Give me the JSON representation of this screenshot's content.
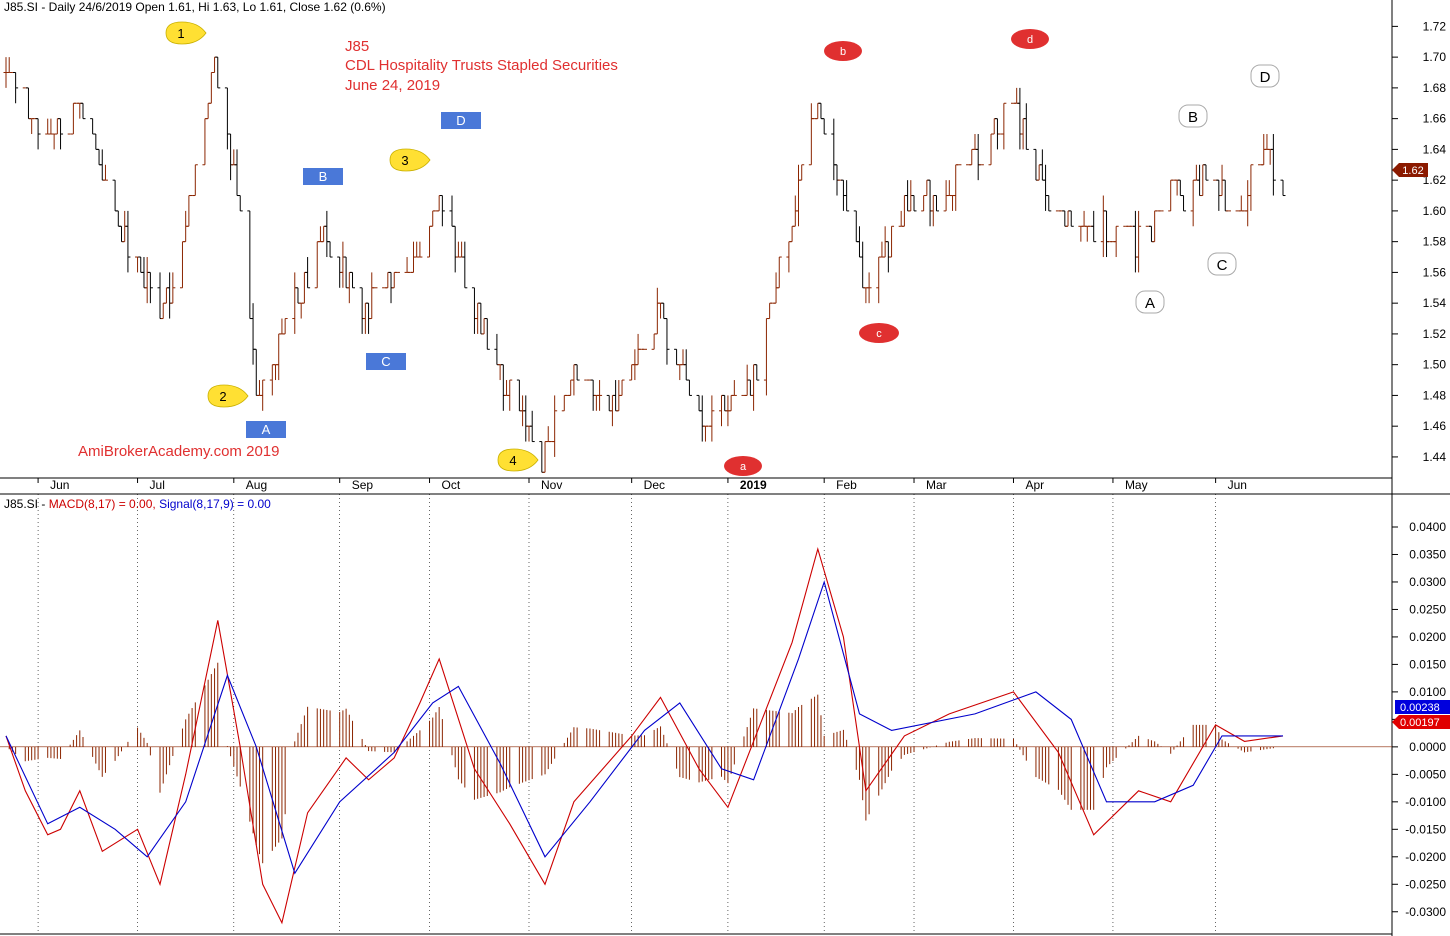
{
  "price_pane": {
    "header": "J85.SI - Daily 24/6/2019 Open 1.61, Hi 1.63, Lo 1.61, Close 1.62 (0.6%)",
    "title_lines": [
      "J85",
      "CDL Hospitality Trusts Stapled Securities",
      "June 24, 2019"
    ],
    "watermark": "AmiBrokerAcademy.com  2019",
    "last_price_tag": "1.62",
    "colors": {
      "up": "#8b2500",
      "down": "#000000",
      "title": "#e03030",
      "tag_bg": "#8b1a00"
    }
  },
  "macd_pane": {
    "header_prefix": "J85.SI - ",
    "macd_label": "MACD(8,17) = 0.00, ",
    "signal_label": "Signal(8,17,9) = 0.00",
    "macd_tag": "0.00197",
    "signal_tag": "0.00238",
    "colors": {
      "macd": "#cc0000",
      "signal": "#0000cc",
      "hist": "#8b2500"
    }
  },
  "annotations": {
    "yellow": [
      "1",
      "2",
      "3",
      "4"
    ],
    "blue": [
      "A",
      "B",
      "C",
      "D"
    ],
    "red": [
      "a",
      "b",
      "c",
      "d"
    ],
    "white": [
      "A",
      "B",
      "C",
      "D"
    ]
  },
  "chart_data": [
    {
      "type": "candlestick",
      "title": "J85 CDL Hospitality Trusts Stapled Securities June 24, 2019",
      "x_tick_labels": [
        "Jun",
        "Jul",
        "Aug",
        "Sep",
        "Oct",
        "Nov",
        "Dec",
        "2019",
        "Feb",
        "Mar",
        "Apr",
        "May",
        "Jun"
      ],
      "y_tick_labels": [
        "1.44",
        "1.46",
        "1.48",
        "1.50",
        "1.52",
        "1.54",
        "1.56",
        "1.58",
        "1.60",
        "1.62",
        "1.64",
        "1.66",
        "1.68",
        "1.70",
        "1.72"
      ],
      "ylim": [
        1.425,
        1.73
      ],
      "series": [
        {
          "name": "J85.SI",
          "close_path": [
            {
              "date": "2018-05-22",
              "value": 1.69
            },
            {
              "date": "2018-06-05",
              "value": 1.65
            },
            {
              "date": "2018-06-14",
              "value": 1.67
            },
            {
              "date": "2018-06-25",
              "value": 1.6
            },
            {
              "date": "2018-07-09",
              "value": 1.53
            },
            {
              "date": "2018-07-17",
              "value": 1.59
            },
            {
              "date": "2018-07-26",
              "value": 1.7
            },
            {
              "date": "2018-08-03",
              "value": 1.6
            },
            {
              "date": "2018-08-08",
              "value": 1.48
            },
            {
              "date": "2018-08-20",
              "value": 1.54
            },
            {
              "date": "2018-08-29",
              "value": 1.58
            },
            {
              "date": "2018-09-10",
              "value": 1.54
            },
            {
              "date": "2018-09-26",
              "value": 1.57
            },
            {
              "date": "2018-10-05",
              "value": 1.61
            },
            {
              "date": "2018-10-15",
              "value": 1.53
            },
            {
              "date": "2018-10-25",
              "value": 1.49
            },
            {
              "date": "2018-11-06",
              "value": 1.44
            },
            {
              "date": "2018-11-15",
              "value": 1.49
            },
            {
              "date": "2018-11-28",
              "value": 1.48
            },
            {
              "date": "2018-12-12",
              "value": 1.53
            },
            {
              "date": "2018-12-26",
              "value": 1.46
            },
            {
              "date": "2019-01-10",
              "value": 1.49
            },
            {
              "date": "2019-01-22",
              "value": 1.59
            },
            {
              "date": "2019-01-30",
              "value": 1.67
            },
            {
              "date": "2019-02-08",
              "value": 1.6
            },
            {
              "date": "2019-02-14",
              "value": 1.55
            },
            {
              "date": "2019-02-26",
              "value": 1.6
            },
            {
              "date": "2019-03-15",
              "value": 1.62
            },
            {
              "date": "2019-04-01",
              "value": 1.67
            },
            {
              "date": "2019-04-12",
              "value": 1.6
            },
            {
              "date": "2019-04-26",
              "value": 1.59
            },
            {
              "date": "2019-05-10",
              "value": 1.58
            },
            {
              "date": "2019-05-20",
              "value": 1.61
            },
            {
              "date": "2019-06-03",
              "value": 1.62
            },
            {
              "date": "2019-06-10",
              "value": 1.6
            },
            {
              "date": "2019-06-17",
              "value": 1.64
            },
            {
              "date": "2019-06-24",
              "value": 1.62
            }
          ]
        }
      ]
    },
    {
      "type": "line",
      "x_tick_labels": [],
      "y_tick_labels": [
        "0.0400",
        "0.0350",
        "0.0300",
        "0.0250",
        "0.0200",
        "0.0150",
        "0.0100",
        "0.0050",
        "0.0000",
        "-0.0050",
        "-0.0100",
        "-0.0150",
        "-0.0200",
        "-0.0250",
        "-0.0300"
      ],
      "ylim": [
        -0.0335,
        0.042
      ],
      "series": [
        {
          "name": "MACD(8,17)",
          "values": [
            {
              "date": "2018-05-22",
              "value": 0.002
            },
            {
              "date": "2018-05-28",
              "value": -0.008
            },
            {
              "date": "2018-06-04",
              "value": -0.016
            },
            {
              "date": "2018-06-08",
              "value": -0.015
            },
            {
              "date": "2018-06-14",
              "value": -0.008
            },
            {
              "date": "2018-06-21",
              "value": -0.019
            },
            {
              "date": "2018-07-02",
              "value": -0.015
            },
            {
              "date": "2018-07-09",
              "value": -0.025
            },
            {
              "date": "2018-07-17",
              "value": -0.005
            },
            {
              "date": "2018-07-27",
              "value": 0.023
            },
            {
              "date": "2018-08-03",
              "value": 0.0
            },
            {
              "date": "2018-08-10",
              "value": -0.025
            },
            {
              "date": "2018-08-16",
              "value": -0.032
            },
            {
              "date": "2018-08-24",
              "value": -0.012
            },
            {
              "date": "2018-09-05",
              "value": -0.002
            },
            {
              "date": "2018-09-12",
              "value": -0.006
            },
            {
              "date": "2018-09-20",
              "value": -0.002
            },
            {
              "date": "2018-09-28",
              "value": 0.008
            },
            {
              "date": "2018-10-04",
              "value": 0.016
            },
            {
              "date": "2018-10-15",
              "value": -0.004
            },
            {
              "date": "2018-10-26",
              "value": -0.014
            },
            {
              "date": "2018-11-06",
              "value": -0.025
            },
            {
              "date": "2018-11-15",
              "value": -0.01
            },
            {
              "date": "2018-12-03",
              "value": 0.002
            },
            {
              "date": "2018-12-12",
              "value": 0.009
            },
            {
              "date": "2018-12-24",
              "value": -0.004
            },
            {
              "date": "2019-01-02",
              "value": -0.011
            },
            {
              "date": "2019-01-14",
              "value": 0.007
            },
            {
              "date": "2019-01-22",
              "value": 0.019
            },
            {
              "date": "2019-01-30",
              "value": 0.036
            },
            {
              "date": "2019-02-07",
              "value": 0.02
            },
            {
              "date": "2019-02-14",
              "value": -0.008
            },
            {
              "date": "2019-02-26",
              "value": 0.002
            },
            {
              "date": "2019-03-12",
              "value": 0.006
            },
            {
              "date": "2019-04-01",
              "value": 0.01
            },
            {
              "date": "2019-04-15",
              "value": -0.001
            },
            {
              "date": "2019-04-26",
              "value": -0.016
            },
            {
              "date": "2019-05-10",
              "value": -0.008
            },
            {
              "date": "2019-05-20",
              "value": -0.01
            },
            {
              "date": "2019-06-03",
              "value": 0.004
            },
            {
              "date": "2019-06-12",
              "value": 0.001
            },
            {
              "date": "2019-06-24",
              "value": 0.002
            }
          ]
        },
        {
          "name": "Signal(8,17,9)",
          "values": [
            {
              "date": "2018-05-22",
              "value": 0.002
            },
            {
              "date": "2018-06-04",
              "value": -0.014
            },
            {
              "date": "2018-06-14",
              "value": -0.011
            },
            {
              "date": "2018-06-25",
              "value": -0.015
            },
            {
              "date": "2018-07-05",
              "value": -0.02
            },
            {
              "date": "2018-07-17",
              "value": -0.01
            },
            {
              "date": "2018-07-30",
              "value": 0.013
            },
            {
              "date": "2018-08-08",
              "value": 0.0
            },
            {
              "date": "2018-08-20",
              "value": -0.023
            },
            {
              "date": "2018-09-03",
              "value": -0.01
            },
            {
              "date": "2018-09-20",
              "value": -0.001
            },
            {
              "date": "2018-10-02",
              "value": 0.008
            },
            {
              "date": "2018-10-10",
              "value": 0.011
            },
            {
              "date": "2018-10-23",
              "value": -0.003
            },
            {
              "date": "2018-11-06",
              "value": -0.02
            },
            {
              "date": "2018-11-20",
              "value": -0.01
            },
            {
              "date": "2018-12-07",
              "value": 0.003
            },
            {
              "date": "2018-12-18",
              "value": 0.008
            },
            {
              "date": "2018-12-31",
              "value": -0.004
            },
            {
              "date": "2019-01-10",
              "value": -0.006
            },
            {
              "date": "2019-01-24",
              "value": 0.016
            },
            {
              "date": "2019-02-01",
              "value": 0.03
            },
            {
              "date": "2019-02-12",
              "value": 0.006
            },
            {
              "date": "2019-02-22",
              "value": 0.003
            },
            {
              "date": "2019-03-20",
              "value": 0.006
            },
            {
              "date": "2019-04-08",
              "value": 0.01
            },
            {
              "date": "2019-04-19",
              "value": 0.005
            },
            {
              "date": "2019-04-30",
              "value": -0.01
            },
            {
              "date": "2019-05-15",
              "value": -0.01
            },
            {
              "date": "2019-05-27",
              "value": -0.007
            },
            {
              "date": "2019-06-05",
              "value": 0.002
            },
            {
              "date": "2019-06-24",
              "value": 0.002
            }
          ]
        }
      ]
    }
  ]
}
